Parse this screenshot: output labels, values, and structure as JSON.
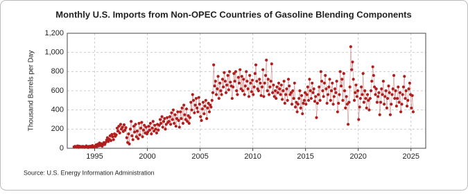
{
  "chart_data": {
    "type": "line",
    "title": "Monthly U.S. Imports from Non-OPEC Countries of Gasoline Blending Components",
    "y_label": "Thousand Barrels per Day",
    "source": "Source: U.S. Energy Information Administration",
    "xlim": [
      1992.4,
      2026.4
    ],
    "ylim": [
      0,
      1200
    ],
    "xticks": [
      1995,
      2000,
      2005,
      2010,
      2015,
      2020,
      2025
    ],
    "yticks": [
      0,
      200,
      400,
      600,
      800,
      {
        "value": 1000,
        "label": "1,000"
      },
      {
        "value": 1200,
        "label": "1,200"
      }
    ],
    "grid": true,
    "series": [
      {
        "color": "#b01e1e",
        "x": [
          1993.04,
          1993.13,
          1993.21,
          1993.29,
          1993.38,
          1993.46,
          1993.54,
          1993.63,
          1993.71,
          1993.79,
          1993.88,
          1993.96,
          1994.04,
          1994.13,
          1994.21,
          1994.29,
          1994.38,
          1994.46,
          1994.54,
          1994.63,
          1994.71,
          1994.79,
          1994.88,
          1994.96,
          1995.04,
          1995.13,
          1995.21,
          1995.29,
          1995.38,
          1995.46,
          1995.54,
          1995.63,
          1995.71,
          1995.79,
          1995.88,
          1995.96,
          1996.04,
          1996.13,
          1996.21,
          1996.29,
          1996.38,
          1996.46,
          1996.54,
          1996.63,
          1996.71,
          1996.79,
          1996.88,
          1996.96,
          1997.04,
          1997.13,
          1997.21,
          1997.29,
          1997.38,
          1997.46,
          1997.54,
          1997.63,
          1997.71,
          1997.79,
          1997.88,
          1997.96,
          1998.04,
          1998.13,
          1998.21,
          1998.29,
          1998.38,
          1998.46,
          1998.54,
          1998.63,
          1998.71,
          1998.79,
          1998.88,
          1998.96,
          1999.04,
          1999.13,
          1999.21,
          1999.29,
          1999.38,
          1999.46,
          1999.54,
          1999.63,
          1999.71,
          1999.79,
          1999.88,
          1999.96,
          2000.04,
          2000.13,
          2000.21,
          2000.29,
          2000.38,
          2000.46,
          2000.54,
          2000.63,
          2000.71,
          2000.79,
          2000.88,
          2000.96,
          2001.04,
          2001.13,
          2001.21,
          2001.29,
          2001.38,
          2001.46,
          2001.54,
          2001.63,
          2001.71,
          2001.79,
          2001.88,
          2001.96,
          2002.04,
          2002.13,
          2002.21,
          2002.29,
          2002.38,
          2002.46,
          2002.54,
          2002.63,
          2002.71,
          2002.79,
          2002.88,
          2002.96,
          2003.04,
          2003.13,
          2003.21,
          2003.29,
          2003.38,
          2003.46,
          2003.54,
          2003.63,
          2003.71,
          2003.79,
          2003.88,
          2003.96,
          2004.04,
          2004.13,
          2004.21,
          2004.29,
          2004.38,
          2004.46,
          2004.54,
          2004.63,
          2004.71,
          2004.79,
          2004.88,
          2004.96,
          2005.04,
          2005.13,
          2005.21,
          2005.29,
          2005.38,
          2005.46,
          2005.54,
          2005.63,
          2005.71,
          2005.79,
          2005.88,
          2005.96,
          2006.04,
          2006.13,
          2006.21,
          2006.29,
          2006.38,
          2006.46,
          2006.54,
          2006.63,
          2006.71,
          2006.79,
          2006.88,
          2006.96,
          2007.04,
          2007.13,
          2007.21,
          2007.29,
          2007.38,
          2007.46,
          2007.54,
          2007.63,
          2007.71,
          2007.79,
          2007.88,
          2007.96,
          2008.04,
          2008.13,
          2008.21,
          2008.29,
          2008.38,
          2008.46,
          2008.54,
          2008.63,
          2008.71,
          2008.79,
          2008.88,
          2008.96,
          2009.04,
          2009.13,
          2009.21,
          2009.29,
          2009.38,
          2009.46,
          2009.54,
          2009.63,
          2009.71,
          2009.79,
          2009.88,
          2009.96,
          2010.04,
          2010.13,
          2010.21,
          2010.29,
          2010.38,
          2010.46,
          2010.54,
          2010.63,
          2010.71,
          2010.79,
          2010.88,
          2010.96,
          2011.04,
          2011.13,
          2011.21,
          2011.29,
          2011.38,
          2011.46,
          2011.54,
          2011.63,
          2011.71,
          2011.79,
          2011.88,
          2011.96,
          2012.04,
          2012.13,
          2012.21,
          2012.29,
          2012.38,
          2012.46,
          2012.54,
          2012.63,
          2012.71,
          2012.79,
          2012.88,
          2012.96,
          2013.04,
          2013.13,
          2013.21,
          2013.29,
          2013.38,
          2013.46,
          2013.54,
          2013.63,
          2013.71,
          2013.79,
          2013.88,
          2013.96,
          2014.04,
          2014.13,
          2014.21,
          2014.29,
          2014.38,
          2014.46,
          2014.54,
          2014.63,
          2014.71,
          2014.79,
          2014.88,
          2014.96,
          2015.04,
          2015.13,
          2015.21,
          2015.29,
          2015.38,
          2015.46,
          2015.54,
          2015.63,
          2015.71,
          2015.79,
          2015.88,
          2015.96,
          2016.04,
          2016.13,
          2016.21,
          2016.29,
          2016.38,
          2016.46,
          2016.54,
          2016.63,
          2016.71,
          2016.79,
          2016.88,
          2016.96,
          2017.04,
          2017.13,
          2017.21,
          2017.29,
          2017.38,
          2017.46,
          2017.54,
          2017.63,
          2017.71,
          2017.79,
          2017.88,
          2017.96,
          2018.04,
          2018.13,
          2018.21,
          2018.29,
          2018.38,
          2018.46,
          2018.54,
          2018.63,
          2018.71,
          2018.79,
          2018.88,
          2018.96,
          2019.04,
          2019.13,
          2019.21,
          2019.29,
          2019.38,
          2019.46,
          2019.54,
          2019.63,
          2019.71,
          2019.79,
          2019.88,
          2019.96,
          2020.04,
          2020.13,
          2020.21,
          2020.29,
          2020.38,
          2020.46,
          2020.54,
          2020.63,
          2020.71,
          2020.79,
          2020.88,
          2020.96,
          2021.04,
          2021.13,
          2021.21,
          2021.29,
          2021.38,
          2021.46,
          2021.54,
          2021.63,
          2021.71,
          2021.79,
          2021.88,
          2021.96,
          2022.04,
          2022.13,
          2022.21,
          2022.29,
          2022.38,
          2022.46,
          2022.54,
          2022.63,
          2022.71,
          2022.79,
          2022.88,
          2022.96,
          2023.04,
          2023.13,
          2023.21,
          2023.29,
          2023.38,
          2023.46,
          2023.54,
          2023.63,
          2023.71,
          2023.79,
          2023.88,
          2023.96,
          2024.04,
          2024.13,
          2024.21,
          2024.29,
          2024.38,
          2024.46,
          2024.54,
          2024.63,
          2024.71,
          2024.79,
          2024.88,
          2024.96,
          2025.04,
          2025.13,
          2025.21
        ],
        "values": [
          15,
          20,
          12,
          18,
          25,
          10,
          22,
          14,
          18,
          12,
          20,
          16,
          10,
          18,
          25,
          14,
          8,
          20,
          12,
          22,
          15,
          28,
          18,
          12,
          20,
          35,
          18,
          42,
          25,
          55,
          30,
          48,
          22,
          38,
          60,
          40,
          60,
          85,
          110,
          70,
          95,
          130,
          80,
          145,
          120,
          90,
          150,
          125,
          140,
          210,
          180,
          230,
          160,
          250,
          200,
          220,
          175,
          245,
          190,
          215,
          110,
          60,
          150,
          45,
          200,
          280,
          130,
          90,
          230,
          170,
          250,
          120,
          180,
          100,
          260,
          140,
          210,
          270,
          120,
          190,
          240,
          160,
          220,
          150,
          170,
          230,
          190,
          260,
          150,
          210,
          280,
          180,
          240,
          200,
          160,
          250,
          190,
          240,
          300,
          260,
          330,
          220,
          280,
          310,
          200,
          250,
          320,
          270,
          280,
          330,
          250,
          370,
          300,
          400,
          260,
          350,
          230,
          310,
          380,
          290,
          220,
          380,
          310,
          420,
          260,
          450,
          350,
          300,
          410,
          280,
          340,
          260,
          320,
          480,
          400,
          560,
          500,
          370,
          450,
          520,
          420,
          380,
          530,
          460,
          330,
          290,
          410,
          480,
          360,
          440,
          500,
          310,
          420,
          470,
          380,
          450,
          430,
          500,
          580,
          870,
          650,
          700,
          560,
          620,
          750,
          520,
          680,
          600,
          560,
          720,
          640,
          790,
          700,
          580,
          660,
          760,
          610,
          800,
          690,
          650,
          520,
          640,
          780,
          700,
          800,
          600,
          560,
          740,
          680,
          820,
          620,
          750,
          600,
          720,
          560,
          650,
          800,
          700,
          620,
          540,
          760,
          680,
          590,
          710,
          560,
          640,
          780,
          870,
          700,
          620,
          600,
          720,
          680,
          550,
          640,
          820,
          540,
          680,
          760,
          920,
          600,
          720,
          560,
          640,
          700,
          880,
          580,
          660,
          540,
          600,
          520,
          640,
          580,
          680,
          620,
          560,
          660,
          510,
          600,
          700,
          470,
          560,
          620,
          500,
          720,
          650,
          560,
          580,
          460,
          600,
          520,
          680,
          430,
          480,
          380,
          460,
          520,
          600,
          420,
          550,
          360,
          470,
          500,
          580,
          460,
          560,
          640,
          500,
          720,
          600,
          520,
          680,
          580,
          620,
          490,
          540,
          320,
          470,
          560,
          640,
          500,
          800,
          700,
          600,
          540,
          680,
          760,
          620,
          470,
          560,
          640,
          720,
          500,
          600,
          680,
          460,
          540,
          620,
          580,
          700,
          380,
          470,
          560,
          800,
          650,
          720,
          500,
          780,
          600,
          420,
          540,
          460,
          250,
          480,
          640,
          1060,
          820,
          900,
          720,
          500,
          580,
          660,
          540,
          600,
          300,
          430,
          520,
          640,
          560,
          780,
          480,
          600,
          520,
          420,
          560,
          500,
          400,
          520,
          600,
          700,
          850,
          760,
          640,
          560,
          620,
          480,
          540,
          580,
          350,
          480,
          620,
          560,
          700,
          460,
          540,
          600,
          420,
          520,
          650,
          580,
          350,
          460,
          560,
          620,
          760,
          520,
          600,
          440,
          520,
          640,
          480,
          580,
          380,
          460,
          560,
          640,
          750,
          520,
          600,
          440,
          500,
          620,
          680,
          560,
          420,
          550,
          380
        ]
      }
    ]
  }
}
